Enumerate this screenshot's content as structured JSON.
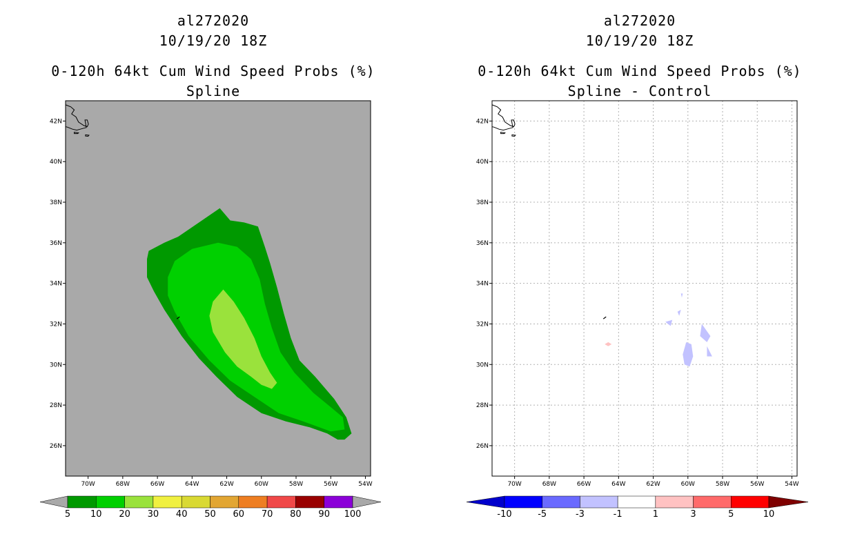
{
  "colors": {
    "ocean_gray": "#a9a9a9",
    "prob_bins": [
      "#009900",
      "#00d000",
      "#9ae23c",
      "#f0f040",
      "#d9d933",
      "#e2a633",
      "#ee7e22",
      "#f04848",
      "#990000",
      "#8b00d8"
    ],
    "diff_bins": [
      "#0000cc",
      "#0000ff",
      "#6a6aff",
      "#c2c2ff",
      "#ffffff",
      "#ffc2c2",
      "#ff6a6a",
      "#ff0000",
      "#7f0000"
    ]
  },
  "chart_data": [
    {
      "type": "contour-map",
      "id": "spline",
      "title_lines": [
        "al272020",
        "10/19/20 18Z",
        "0-120h 64kt Cum Wind Speed Probs (%)",
        "Spline"
      ],
      "lon_ticks": [
        "70W",
        "68W",
        "66W",
        "64W",
        "62W",
        "60W",
        "58W",
        "56W",
        "54W"
      ],
      "lat_ticks": [
        "42N",
        "40N",
        "38N",
        "36N",
        "34N",
        "32N",
        "30N",
        "28N",
        "26N"
      ],
      "lon_range": [
        -71.3,
        -53.7
      ],
      "lat_range": [
        24.5,
        43.0
      ],
      "gridlines": false,
      "colorbar": {
        "labels": [
          "5",
          "10",
          "20",
          "30",
          "40",
          "50",
          "60",
          "70",
          "80",
          "90",
          "100"
        ],
        "lower_extend": true,
        "upper_extend": true
      },
      "contours": [
        {
          "level": "5-10",
          "color_index": 0,
          "points": [
            [
              -62.4,
              37.7
            ],
            [
              -61.8,
              37.1
            ],
            [
              -61.0,
              37.0
            ],
            [
              -60.2,
              36.8
            ],
            [
              -59.8,
              35.8
            ],
            [
              -59.5,
              35.0
            ],
            [
              -59.1,
              33.8
            ],
            [
              -58.7,
              32.5
            ],
            [
              -58.3,
              31.3
            ],
            [
              -57.8,
              30.2
            ],
            [
              -56.9,
              29.4
            ],
            [
              -55.8,
              28.3
            ],
            [
              -55.1,
              27.4
            ],
            [
              -54.8,
              26.6
            ],
            [
              -55.2,
              26.3
            ],
            [
              -55.6,
              26.3
            ],
            [
              -56.2,
              26.6
            ],
            [
              -57.2,
              26.9
            ],
            [
              -58.6,
              27.2
            ],
            [
              -60.0,
              27.6
            ],
            [
              -61.4,
              28.4
            ],
            [
              -62.6,
              29.4
            ],
            [
              -63.6,
              30.3
            ],
            [
              -64.6,
              31.4
            ],
            [
              -65.6,
              32.7
            ],
            [
              -66.2,
              33.6
            ],
            [
              -66.6,
              34.3
            ],
            [
              -66.6,
              35.2
            ],
            [
              -66.5,
              35.6
            ],
            [
              -65.6,
              36.0
            ],
            [
              -64.8,
              36.3
            ],
            [
              -63.6,
              37.0
            ]
          ]
        },
        {
          "level": "10-20",
          "color_index": 1,
          "points": [
            [
              -62.5,
              36.0
            ],
            [
              -61.4,
              35.8
            ],
            [
              -60.6,
              35.2
            ],
            [
              -60.1,
              34.2
            ],
            [
              -59.8,
              33.0
            ],
            [
              -59.4,
              31.8
            ],
            [
              -58.9,
              30.6
            ],
            [
              -58.1,
              29.6
            ],
            [
              -57.0,
              28.6
            ],
            [
              -56.0,
              27.9
            ],
            [
              -55.3,
              27.4
            ],
            [
              -55.2,
              26.8
            ],
            [
              -56.0,
              26.7
            ],
            [
              -57.6,
              27.2
            ],
            [
              -59.0,
              27.6
            ],
            [
              -60.4,
              28.4
            ],
            [
              -61.8,
              29.2
            ],
            [
              -63.0,
              30.2
            ],
            [
              -64.2,
              31.4
            ],
            [
              -65.0,
              32.6
            ],
            [
              -65.4,
              33.4
            ],
            [
              -65.4,
              34.3
            ],
            [
              -65.0,
              35.1
            ],
            [
              -64.0,
              35.7
            ]
          ]
        },
        {
          "level": "20-30",
          "color_index": 2,
          "points": [
            [
              -62.2,
              33.7
            ],
            [
              -61.6,
              33.1
            ],
            [
              -61.0,
              32.3
            ],
            [
              -60.4,
              31.3
            ],
            [
              -60.0,
              30.4
            ],
            [
              -59.5,
              29.6
            ],
            [
              -59.1,
              29.1
            ],
            [
              -59.4,
              28.8
            ],
            [
              -60.0,
              29.0
            ],
            [
              -60.6,
              29.4
            ],
            [
              -61.4,
              29.9
            ],
            [
              -62.1,
              30.6
            ],
            [
              -62.8,
              31.6
            ],
            [
              -63.0,
              32.4
            ],
            [
              -62.8,
              33.1
            ]
          ]
        }
      ],
      "islands": [
        {
          "name": "bermuda",
          "lon": -64.8,
          "lat": 32.3
        }
      ]
    },
    {
      "type": "contour-map",
      "id": "spline-minus-control",
      "title_lines": [
        "al272020",
        "10/19/20 18Z",
        "0-120h 64kt Cum Wind Speed Probs (%)",
        "Spline - Control"
      ],
      "lon_ticks": [
        "70W",
        "68W",
        "66W",
        "64W",
        "62W",
        "60W",
        "58W",
        "56W",
        "54W"
      ],
      "lat_ticks": [
        "42N",
        "40N",
        "38N",
        "36N",
        "34N",
        "32N",
        "30N",
        "28N",
        "26N"
      ],
      "lon_range": [
        -71.3,
        -53.7
      ],
      "lat_range": [
        24.5,
        43.0
      ],
      "gridlines": true,
      "colorbar": {
        "labels": [
          "-10",
          "-5",
          "-3",
          "-1",
          "1",
          "3",
          "5",
          "10"
        ],
        "lower_extend": true,
        "upper_extend": true
      },
      "contours": [
        {
          "level": "-3 to -1",
          "color_index": 3,
          "points": [
            [
              -60.1,
              31.1
            ],
            [
              -59.8,
              31.0
            ],
            [
              -59.7,
              30.4
            ],
            [
              -59.9,
              29.9
            ],
            [
              -60.2,
              30.0
            ],
            [
              -60.3,
              30.5
            ]
          ]
        },
        {
          "level": "-3 to -1",
          "color_index": 3,
          "points": [
            [
              -59.2,
              32.0
            ],
            [
              -58.7,
              31.4
            ],
            [
              -58.9,
              31.1
            ],
            [
              -59.3,
              31.4
            ]
          ]
        },
        {
          "level": "-3 to -1",
          "color_index": 3,
          "points": [
            [
              -58.9,
              30.9
            ],
            [
              -58.6,
              30.4
            ],
            [
              -58.9,
              30.4
            ]
          ]
        },
        {
          "level": "-3 to -1",
          "color_index": 3,
          "points": [
            [
              -61.3,
              32.1
            ],
            [
              -60.9,
              32.2
            ],
            [
              -61.0,
              31.9
            ]
          ]
        },
        {
          "level": "-3 to -1",
          "color_index": 3,
          "points": [
            [
              -60.6,
              32.6
            ],
            [
              -60.4,
              32.7
            ],
            [
              -60.5,
              32.4
            ]
          ]
        },
        {
          "level": "-3 to -1",
          "color_index": 3,
          "points": [
            [
              -60.4,
              33.5
            ],
            [
              -60.3,
              33.5
            ],
            [
              -60.35,
              33.3
            ]
          ]
        },
        {
          "level": "1 to 3",
          "color_index": 5,
          "points": [
            [
              -64.6,
              31.1
            ],
            [
              -64.4,
              31.0
            ],
            [
              -64.6,
              30.9
            ],
            [
              -64.8,
              31.0
            ]
          ]
        }
      ],
      "islands": [
        {
          "name": "bermuda",
          "lon": -64.8,
          "lat": 32.3
        }
      ]
    }
  ]
}
